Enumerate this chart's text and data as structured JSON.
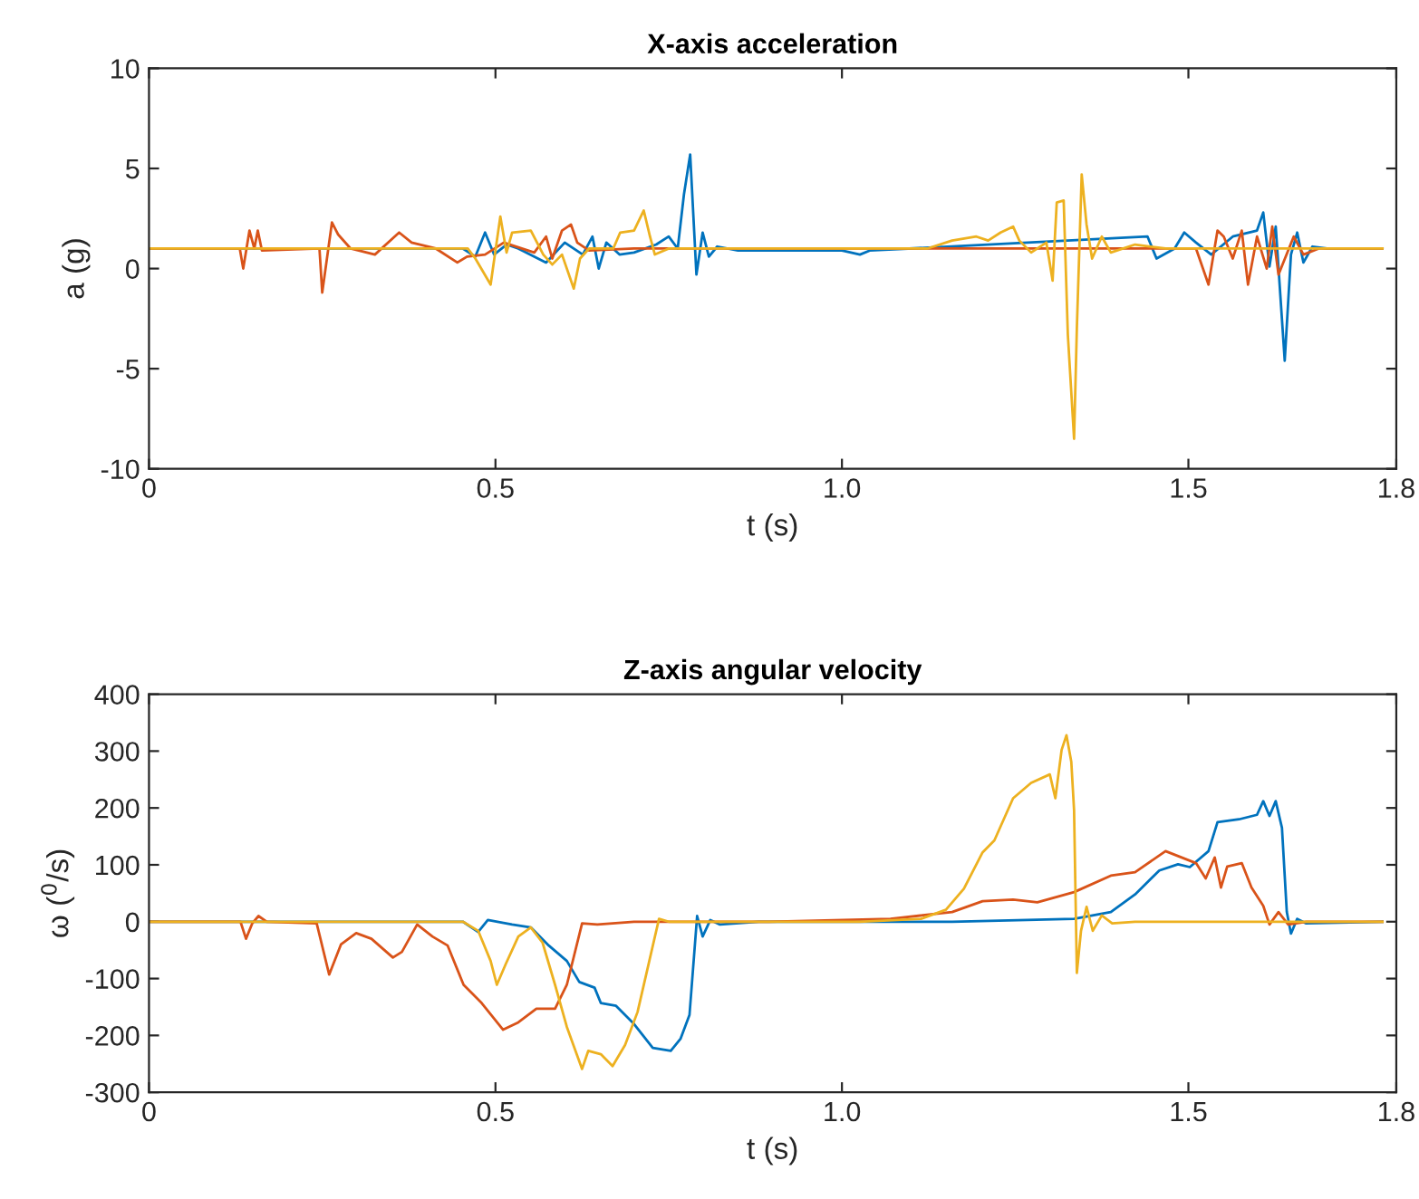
{
  "chart_data": [
    {
      "type": "line",
      "title": "X-axis acceleration",
      "xlabel": "t (s)",
      "ylabel": "a (g)",
      "xlim": [
        0,
        1.8
      ],
      "ylim": [
        -10,
        10
      ],
      "xticks": [
        0,
        0.5,
        {
          "value": 1,
          "label": "1.0"
        },
        1.5,
        1.8
      ],
      "yticks": [
        -10,
        -5,
        0,
        5,
        10
      ],
      "grid": false,
      "series": [
        {
          "color": "#0072bd",
          "x": [
            0,
            0.453,
            0.471,
            0.485,
            0.498,
            0.516,
            0.533,
            0.573,
            0.6,
            0.626,
            0.64,
            0.649,
            0.66,
            0.679,
            0.7,
            0.732,
            0.75,
            0.763,
            0.772,
            0.781,
            0.79,
            0.799,
            0.808,
            0.82,
            0.85,
            1.0,
            1.026,
            1.04,
            1.441,
            1.454,
            1.48,
            1.494,
            1.511,
            1.533,
            1.564,
            1.599,
            1.608,
            1.617,
            1.626,
            1.639,
            1.648,
            1.657,
            1.666,
            1.679,
            1.7,
            1.78
          ],
          "values": [
            1,
            1,
            0.6,
            1.8,
            0.7,
            1.2,
            1,
            0.3,
            1.3,
            0.7,
            1.6,
            0,
            1.3,
            0.7,
            0.8,
            1.2,
            1.6,
            1,
            3.7,
            5.7,
            -0.3,
            1.8,
            0.6,
            1.1,
            0.9,
            0.9,
            0.7,
            0.9,
            1.6,
            0.5,
            1,
            1.8,
            1.3,
            0.7,
            1.6,
            1.9,
            2.8,
            0.1,
            2.1,
            -4.6,
            0.7,
            1.8,
            0.3,
            1.1,
            1,
            1
          ]
        },
        {
          "color": "#d95319",
          "x": [
            0,
            0.131,
            0.136,
            0.145,
            0.152,
            0.157,
            0.163,
            0.246,
            0.25,
            0.264,
            0.273,
            0.291,
            0.326,
            0.361,
            0.379,
            0.414,
            0.445,
            0.459,
            0.485,
            0.512,
            0.556,
            0.573,
            0.582,
            0.596,
            0.609,
            0.618,
            0.635,
            0.7,
            1.0,
            1.511,
            1.529,
            1.542,
            1.551,
            1.564,
            1.577,
            1.586,
            1.599,
            1.613,
            1.621,
            1.63,
            1.652,
            1.666,
            1.688,
            1.78
          ],
          "values": [
            1,
            1,
            0,
            1.9,
            1,
            1.9,
            0.9,
            1,
            -1.2,
            2.3,
            1.7,
            1,
            0.7,
            1.8,
            1.3,
            1,
            0.3,
            0.6,
            0.7,
            1.3,
            0.8,
            1.6,
            0.5,
            1.9,
            2.2,
            1.3,
            0.9,
            1,
            1,
            1,
            -0.8,
            1.9,
            1.6,
            0.5,
            1.9,
            -0.8,
            1.6,
            0,
            2.1,
            -0.3,
            1.6,
            0.7,
            1,
            1
          ]
        },
        {
          "color": "#edb120",
          "x": [
            0,
            0.46,
            0.471,
            0.493,
            0.507,
            0.516,
            0.524,
            0.551,
            0.569,
            0.582,
            0.596,
            0.613,
            0.622,
            0.635,
            0.67,
            0.68,
            0.7,
            0.714,
            0.723,
            0.73,
            0.75,
            1.123,
            1.159,
            1.194,
            1.211,
            1.229,
            1.247,
            1.256,
            1.273,
            1.295,
            1.304,
            1.31,
            1.32,
            1.326,
            1.335,
            1.339,
            1.346,
            1.353,
            1.361,
            1.375,
            1.388,
            1.423,
            1.467,
            1.78
          ],
          "values": [
            1,
            1,
            0.5,
            -0.8,
            2.6,
            0.8,
            1.8,
            1.9,
            0.7,
            0.2,
            0.7,
            -1,
            0.5,
            1,
            1,
            1.8,
            1.9,
            2.9,
            1.6,
            0.7,
            1,
            1,
            1.4,
            1.6,
            1.4,
            1.8,
            2.1,
            1.4,
            0.8,
            1.3,
            -0.6,
            3.3,
            3.4,
            -3.3,
            -8.5,
            -3,
            4.7,
            2.2,
            0.5,
            1.6,
            0.8,
            1.2,
            1,
            1
          ]
        }
      ]
    },
    {
      "type": "line",
      "title": "Z-axis angular velocity",
      "xlabel": "t (s)",
      "ylabel": "ω ($^{0}$/s)",
      "xlim": [
        0,
        1.8
      ],
      "ylim": [
        -300,
        400
      ],
      "xticks": [
        0,
        0.5,
        {
          "value": 1,
          "label": "1.0"
        },
        1.5,
        1.8
      ],
      "yticks": [
        -300,
        -200,
        -100,
        0,
        100,
        200,
        300,
        400
      ],
      "grid": false,
      "series": [
        {
          "color": "#0072bd",
          "x": [
            0,
            0.453,
            0.475,
            0.489,
            0.524,
            0.551,
            0.577,
            0.603,
            0.621,
            0.643,
            0.652,
            0.674,
            0.7,
            0.727,
            0.753,
            0.767,
            0.78,
            0.791,
            0.799,
            0.81,
            0.824,
            0.88,
            1.07,
            1.159,
            1.335,
            1.388,
            1.423,
            1.458,
            1.485,
            1.502,
            1.529,
            1.542,
            1.573,
            1.599,
            1.608,
            1.617,
            1.626,
            1.635,
            1.642,
            1.648,
            1.657,
            1.67,
            1.78
          ],
          "values": [
            0,
            0,
            -18,
            3,
            -5,
            -10,
            -42,
            -69,
            -106,
            -116,
            -143,
            -148,
            -180,
            -222,
            -227,
            -206,
            -164,
            10,
            -26,
            3,
            -5,
            0,
            0,
            0,
            5,
            17,
            48,
            90,
            101,
            96,
            124,
            175,
            180,
            188,
            212,
            186,
            212,
            165,
            17,
            -21,
            5,
            -3,
            0
          ]
        },
        {
          "color": "#d95319",
          "x": [
            0,
            0.132,
            0.14,
            0.149,
            0.158,
            0.17,
            0.242,
            0.26,
            0.277,
            0.299,
            0.321,
            0.352,
            0.365,
            0.387,
            0.409,
            0.431,
            0.454,
            0.48,
            0.511,
            0.533,
            0.559,
            0.586,
            0.603,
            0.625,
            0.647,
            0.7,
            0.894,
            1.07,
            1.159,
            1.203,
            1.247,
            1.282,
            1.335,
            1.388,
            1.423,
            1.467,
            1.511,
            1.525,
            1.538,
            1.547,
            1.556,
            1.577,
            1.591,
            1.608,
            1.617,
            1.63,
            1.644,
            1.67,
            1.78
          ],
          "values": [
            0,
            0,
            -30,
            -3,
            10,
            0,
            -3,
            -93,
            -40,
            -20,
            -30,
            -63,
            -53,
            -5,
            -26,
            -42,
            -111,
            -143,
            -190,
            -177,
            -153,
            -153,
            -111,
            -3,
            -5,
            0,
            0,
            5,
            17,
            36,
            39,
            34,
            52,
            81,
            87,
            124,
            103,
            76,
            113,
            60,
            97,
            103,
            60,
            28,
            -5,
            17,
            -5,
            0,
            0
          ]
        },
        {
          "color": "#edb120",
          "x": [
            0,
            0.453,
            0.475,
            0.493,
            0.502,
            0.515,
            0.533,
            0.551,
            0.568,
            0.586,
            0.603,
            0.625,
            0.634,
            0.652,
            0.669,
            0.687,
            0.705,
            0.722,
            0.736,
            0.75,
            1.026,
            1.114,
            1.15,
            1.176,
            1.203,
            1.22,
            1.247,
            1.273,
            1.3,
            1.308,
            1.317,
            1.324,
            1.331,
            1.335,
            1.339,
            1.345,
            1.353,
            1.362,
            1.375,
            1.39,
            1.423,
            1.78
          ],
          "values": [
            0,
            0,
            -16,
            -69,
            -111,
            -74,
            -26,
            -10,
            -37,
            -111,
            -185,
            -259,
            -227,
            -233,
            -254,
            -217,
            -159,
            -69,
            5,
            0,
            0,
            5,
            21,
            58,
            122,
            143,
            217,
            244,
            259,
            217,
            302,
            328,
            281,
            196,
            -90,
            -16,
            26,
            -16,
            11,
            -3,
            0,
            0
          ]
        }
      ]
    }
  ]
}
